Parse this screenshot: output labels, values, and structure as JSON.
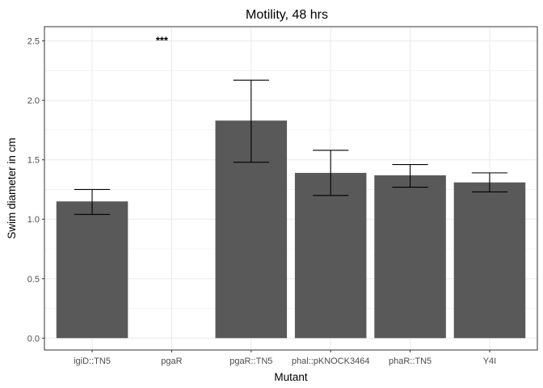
{
  "chart_data": {
    "type": "bar",
    "title": "Motility, 48 hrs",
    "xlabel": "Mutant",
    "ylabel": "Swim diameter in cm",
    "categories": [
      "igiD::TN5",
      "pgaR",
      "pgaR::TN5",
      "phal::pKNOCK3464",
      "phaR::TN5",
      "Y4I"
    ],
    "values": [
      1.15,
      0.0,
      1.83,
      1.39,
      1.37,
      1.31
    ],
    "error_low": [
      1.04,
      null,
      1.48,
      1.2,
      1.27,
      1.23
    ],
    "error_high": [
      1.25,
      null,
      2.17,
      1.58,
      1.46,
      1.39
    ],
    "ylim": [
      -0.1,
      2.62
    ],
    "yticks": [
      "0.0",
      "0.5",
      "1.0",
      "1.5",
      "2.0",
      "2.5"
    ],
    "grid": true,
    "annotations": [
      {
        "category": "pgaR",
        "text": "***",
        "y": 2.5
      }
    ],
    "colors": {
      "bar": "#595959",
      "grid": "#ebebeb",
      "panel_border": "#333333",
      "errorbar": "#000000"
    }
  }
}
